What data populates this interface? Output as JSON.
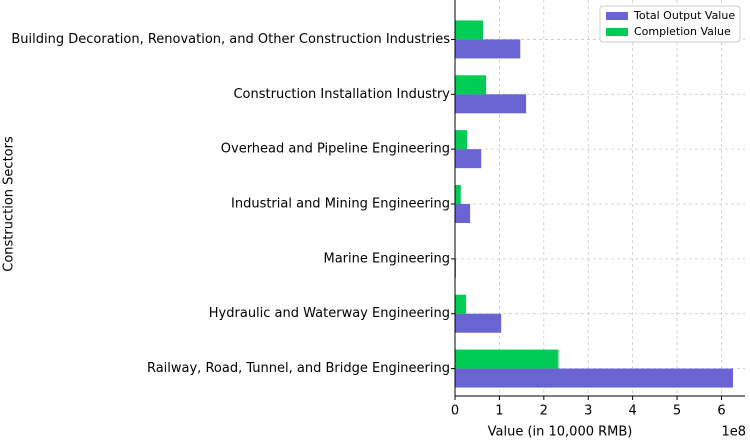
{
  "chart_data": {
    "type": "barh",
    "xlabel": "Value (in 10,000 RMB)",
    "ylabel": "Construction Sectors",
    "x_offset_label": "1e8",
    "categories": [
      "Railway, Road, Tunnel, and Bridge Engineering",
      "Hydraulic and Waterway Engineering",
      "Marine Engineering",
      "Industrial and Mining Engineering",
      "Overhead and Pipeline Engineering",
      "Construction Installation Industry",
      "Building Decoration, Renovation, and Other Construction Industries"
    ],
    "series": [
      {
        "name": "Total Output Value",
        "color": "#6a64d2",
        "values": [
          626000000,
          104000000,
          2000000,
          34000000,
          59000000,
          160000000,
          147000000
        ]
      },
      {
        "name": "Completion Value",
        "color": "#00cc55",
        "values": [
          233000000,
          25000000,
          500000,
          13000000,
          27000000,
          70000000,
          63000000
        ]
      }
    ],
    "xlim": [
      0,
      653000000
    ],
    "xticks": [
      {
        "value": 0,
        "label": "0"
      },
      {
        "value": 100000000,
        "label": "1"
      },
      {
        "value": 200000000,
        "label": "2"
      },
      {
        "value": 300000000,
        "label": "3"
      },
      {
        "value": 400000000,
        "label": "4"
      },
      {
        "value": 500000000,
        "label": "5"
      },
      {
        "value": 600000000,
        "label": "6"
      }
    ],
    "grid": true,
    "legend": "upper right"
  }
}
